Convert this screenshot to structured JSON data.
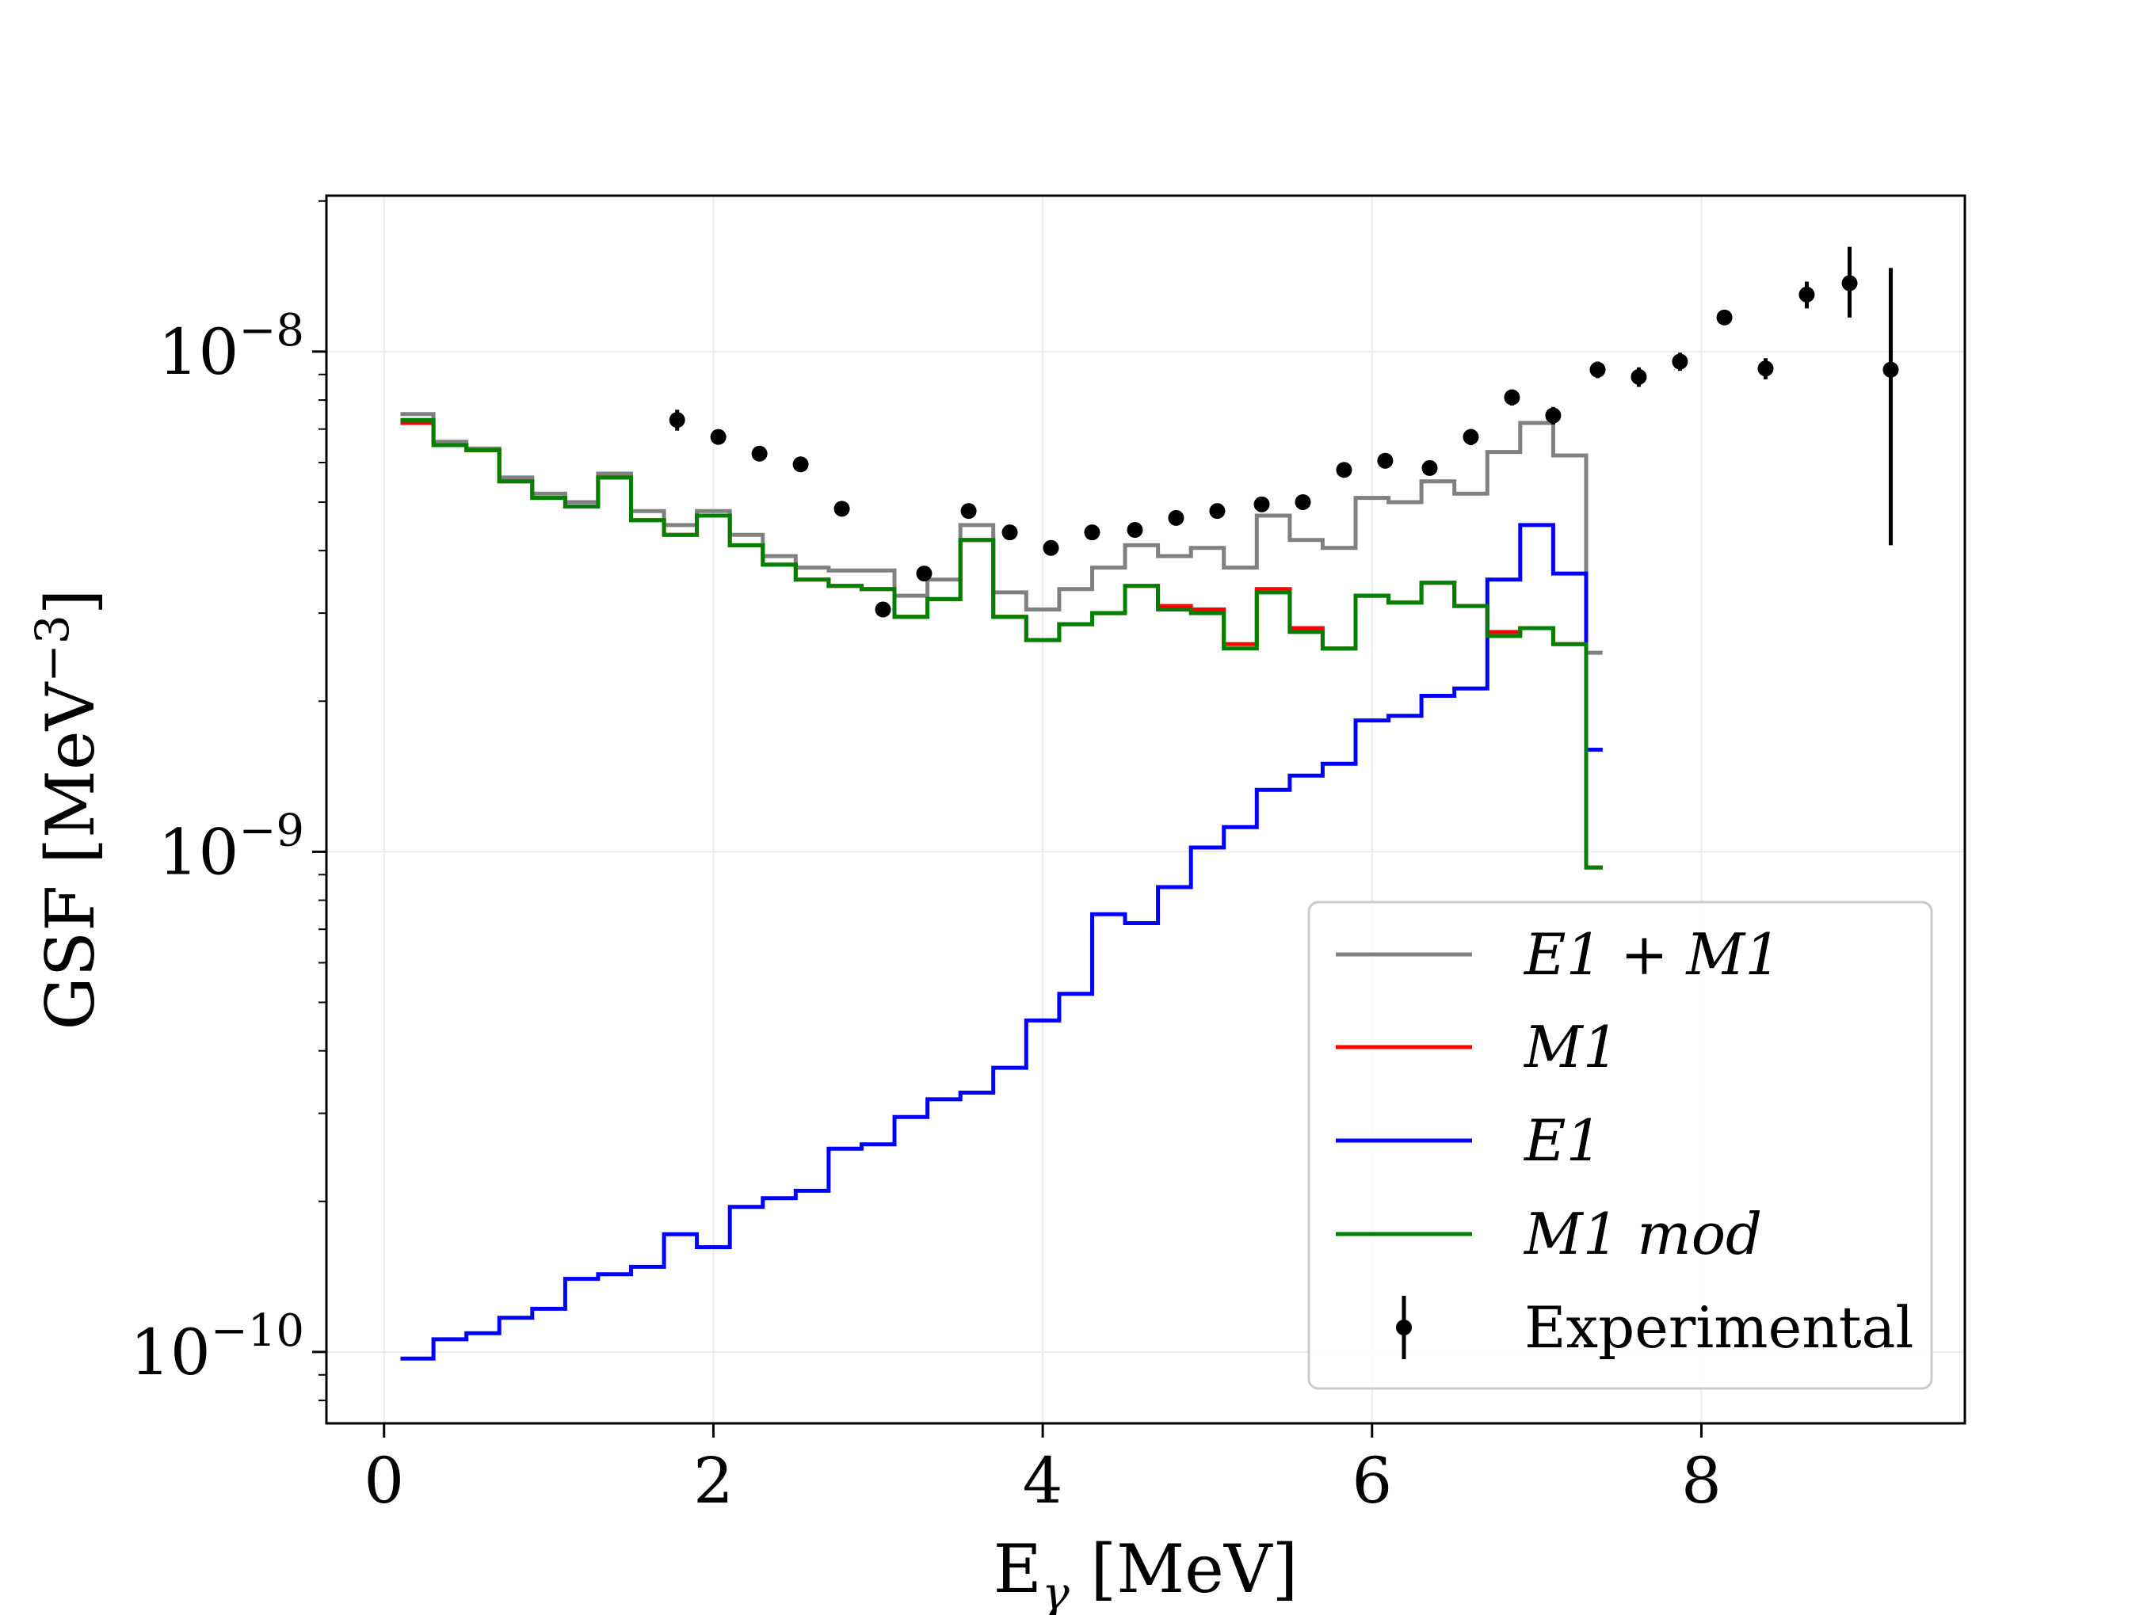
{
  "chart_data": {
    "type": "line",
    "title": "",
    "xlabel": "E",
    "xlabel_sub": "γ",
    "xlabel_unit": "[MeV]",
    "ylabel": "GSF [MeV",
    "ylabel_exp": "−3",
    "ylabel_end": "]",
    "xlim": [
      -0.35,
      9.6
    ],
    "ylim": [
      7.2e-11,
      2.05e-08
    ],
    "yscale": "log",
    "grid": true,
    "x_ticks": [
      0,
      2,
      4,
      6,
      8
    ],
    "x_tick_labels": [
      "0",
      "2",
      "4",
      "6",
      "8"
    ],
    "y_ticks": [
      {
        "value": 1e-10,
        "base": "10",
        "exp": "−10"
      },
      {
        "value": 1e-09,
        "base": "10",
        "exp": "−9"
      },
      {
        "value": 1e-08,
        "base": "10",
        "exp": "−8"
      }
    ],
    "bin_edges": [
      0.1,
      0.3,
      0.5,
      0.7,
      0.9,
      1.1,
      1.3,
      1.5,
      1.7,
      1.9,
      2.1,
      2.3,
      2.5,
      2.7,
      2.9,
      3.1,
      3.3,
      3.5,
      3.7,
      3.9,
      4.1,
      4.3,
      4.5,
      4.7,
      4.9,
      5.1,
      5.3,
      5.5,
      5.7,
      5.9,
      6.1,
      6.3,
      6.5,
      6.7,
      6.9,
      7.1,
      7.3,
      7.4
    ],
    "series": [
      {
        "name": "E1 + M1",
        "color": "#808080",
        "values": [
          7.5e-09,
          6.6e-09,
          6.4e-09,
          5.6e-09,
          5.2e-09,
          5e-09,
          5.7e-09,
          4.8e-09,
          4.5e-09,
          4.8e-09,
          4.3e-09,
          3.9e-09,
          3.7e-09,
          3.65e-09,
          3.65e-09,
          3.25e-09,
          3.5e-09,
          4.5e-09,
          3.3e-09,
          3.05e-09,
          3.35e-09,
          3.7e-09,
          4.1e-09,
          3.9e-09,
          4.05e-09,
          3.7e-09,
          4.7e-09,
          4.2e-09,
          4.05e-09,
          5.1e-09,
          5e-09,
          5.5e-09,
          5.2e-09,
          6.3e-09,
          7.2e-09,
          6.2e-09,
          2.5e-09
        ]
      },
      {
        "name": "M1",
        "color": "#ff0000",
        "values": [
          7.2e-09,
          6.5e-09,
          6.35e-09,
          5.5e-09,
          5.1e-09,
          4.9e-09,
          5.6e-09,
          4.6e-09,
          4.3e-09,
          4.7e-09,
          4.1e-09,
          3.75e-09,
          3.5e-09,
          3.4e-09,
          3.35e-09,
          2.95e-09,
          3.2e-09,
          4.2e-09,
          2.95e-09,
          2.65e-09,
          2.85e-09,
          3e-09,
          3.4e-09,
          3.1e-09,
          3.05e-09,
          2.6e-09,
          3.35e-09,
          2.8e-09,
          2.55e-09,
          3.25e-09,
          3.15e-09,
          3.45e-09,
          3.1e-09,
          2.75e-09,
          2.8e-09,
          2.6e-09,
          9.3e-10
        ]
      },
      {
        "name": "E1",
        "color": "#0000ff",
        "values": [
          9.7e-11,
          1.06e-10,
          1.09e-10,
          1.17e-10,
          1.22e-10,
          1.4e-10,
          1.43e-10,
          1.48e-10,
          1.72e-10,
          1.62e-10,
          1.95e-10,
          2.03e-10,
          2.1e-10,
          2.55e-10,
          2.6e-10,
          2.95e-10,
          3.2e-10,
          3.3e-10,
          3.7e-10,
          4.6e-10,
          5.2e-10,
          7.5e-10,
          7.2e-10,
          8.5e-10,
          1.02e-09,
          1.12e-09,
          1.33e-09,
          1.42e-09,
          1.5e-09,
          1.83e-09,
          1.87e-09,
          2.05e-09,
          2.12e-09,
          3.5e-09,
          4.5e-09,
          3.6e-09,
          1.6e-09
        ]
      },
      {
        "name": "M1 mod",
        "color": "#008000",
        "values": [
          7.3e-09,
          6.5e-09,
          6.35e-09,
          5.5e-09,
          5.1e-09,
          4.9e-09,
          5.6e-09,
          4.6e-09,
          4.3e-09,
          4.7e-09,
          4.1e-09,
          3.75e-09,
          3.5e-09,
          3.4e-09,
          3.35e-09,
          2.95e-09,
          3.2e-09,
          4.2e-09,
          2.95e-09,
          2.65e-09,
          2.85e-09,
          3e-09,
          3.4e-09,
          3.05e-09,
          3e-09,
          2.55e-09,
          3.3e-09,
          2.75e-09,
          2.55e-09,
          3.25e-09,
          3.15e-09,
          3.45e-09,
          3.1e-09,
          2.7e-09,
          2.8e-09,
          2.6e-09,
          9.3e-10
        ]
      }
    ],
    "experimental": {
      "name": "Experimental",
      "color": "#000000",
      "points": [
        {
          "x": 1.78,
          "y": 7.3e-09,
          "lo": 6.95e-09,
          "hi": 7.65e-09
        },
        {
          "x": 2.03,
          "y": 6.75e-09,
          "lo": 6.65e-09,
          "hi": 6.85e-09
        },
        {
          "x": 2.28,
          "y": 6.25e-09,
          "lo": 6.15e-09,
          "hi": 6.35e-09
        },
        {
          "x": 2.53,
          "y": 5.95e-09,
          "lo": 5.85e-09,
          "hi": 6.05e-09
        },
        {
          "x": 2.78,
          "y": 4.85e-09,
          "lo": 4.78e-09,
          "hi": 4.92e-09
        },
        {
          "x": 3.03,
          "y": 3.05e-09,
          "lo": 3e-09,
          "hi": 3.1e-09
        },
        {
          "x": 3.28,
          "y": 3.6e-09,
          "lo": 3.55e-09,
          "hi": 3.65e-09
        },
        {
          "x": 3.55,
          "y": 4.8e-09,
          "lo": 4.73e-09,
          "hi": 4.87e-09
        },
        {
          "x": 3.8,
          "y": 4.35e-09,
          "lo": 4.29e-09,
          "hi": 4.41e-09
        },
        {
          "x": 4.05,
          "y": 4.05e-09,
          "lo": 3.99e-09,
          "hi": 4.11e-09
        },
        {
          "x": 4.3,
          "y": 4.35e-09,
          "lo": 4.29e-09,
          "hi": 4.41e-09
        },
        {
          "x": 4.56,
          "y": 4.4e-09,
          "lo": 4.34e-09,
          "hi": 4.46e-09
        },
        {
          "x": 4.81,
          "y": 4.65e-09,
          "lo": 4.58e-09,
          "hi": 4.72e-09
        },
        {
          "x": 5.06,
          "y": 4.8e-09,
          "lo": 4.73e-09,
          "hi": 4.87e-09
        },
        {
          "x": 5.33,
          "y": 4.95e-09,
          "lo": 4.88e-09,
          "hi": 5.02e-09
        },
        {
          "x": 5.58,
          "y": 5e-09,
          "lo": 4.93e-09,
          "hi": 5.07e-09
        },
        {
          "x": 5.83,
          "y": 5.8e-09,
          "lo": 5.72e-09,
          "hi": 5.88e-09
        },
        {
          "x": 6.08,
          "y": 6.05e-09,
          "lo": 5.96e-09,
          "hi": 6.14e-09
        },
        {
          "x": 6.35,
          "y": 5.85e-09,
          "lo": 5.77e-09,
          "hi": 5.93e-09
        },
        {
          "x": 6.6,
          "y": 6.75e-09,
          "lo": 6.5e-09,
          "hi": 7e-09
        },
        {
          "x": 6.85,
          "y": 8.1e-09,
          "lo": 7.8e-09,
          "hi": 8.4e-09
        },
        {
          "x": 7.1,
          "y": 7.45e-09,
          "lo": 7.15e-09,
          "hi": 7.75e-09
        },
        {
          "x": 7.37,
          "y": 9.2e-09,
          "lo": 8.85e-09,
          "hi": 9.55e-09
        },
        {
          "x": 7.62,
          "y": 8.9e-09,
          "lo": 8.5e-09,
          "hi": 9.3e-09
        },
        {
          "x": 7.87,
          "y": 9.55e-09,
          "lo": 9.15e-09,
          "hi": 9.95e-09
        },
        {
          "x": 8.14,
          "y": 1.17e-08,
          "lo": 1.13e-08,
          "hi": 1.21e-08
        },
        {
          "x": 8.39,
          "y": 9.25e-09,
          "lo": 8.8e-09,
          "hi": 9.7e-09
        },
        {
          "x": 8.64,
          "y": 1.3e-08,
          "lo": 1.22e-08,
          "hi": 1.38e-08
        },
        {
          "x": 8.9,
          "y": 1.37e-08,
          "lo": 1.17e-08,
          "hi": 1.62e-08
        },
        {
          "x": 9.15,
          "y": 9.2e-09,
          "lo": 4.1e-09,
          "hi": 1.47e-08
        }
      ]
    },
    "legend": {
      "position": "lower-right",
      "entries": [
        {
          "key": "E1 + M1",
          "label": "E1 + M1",
          "kind": "line",
          "color": "#808080"
        },
        {
          "key": "M1",
          "label": "M1",
          "kind": "line",
          "color": "#ff0000"
        },
        {
          "key": "E1",
          "label": "E1",
          "kind": "line",
          "color": "#0000ff"
        },
        {
          "key": "M1 mod",
          "label": "M1 mod",
          "kind": "line",
          "color": "#008000"
        },
        {
          "key": "Experimental",
          "label": "Experimental",
          "kind": "errorbar",
          "color": "#000000"
        }
      ]
    }
  }
}
